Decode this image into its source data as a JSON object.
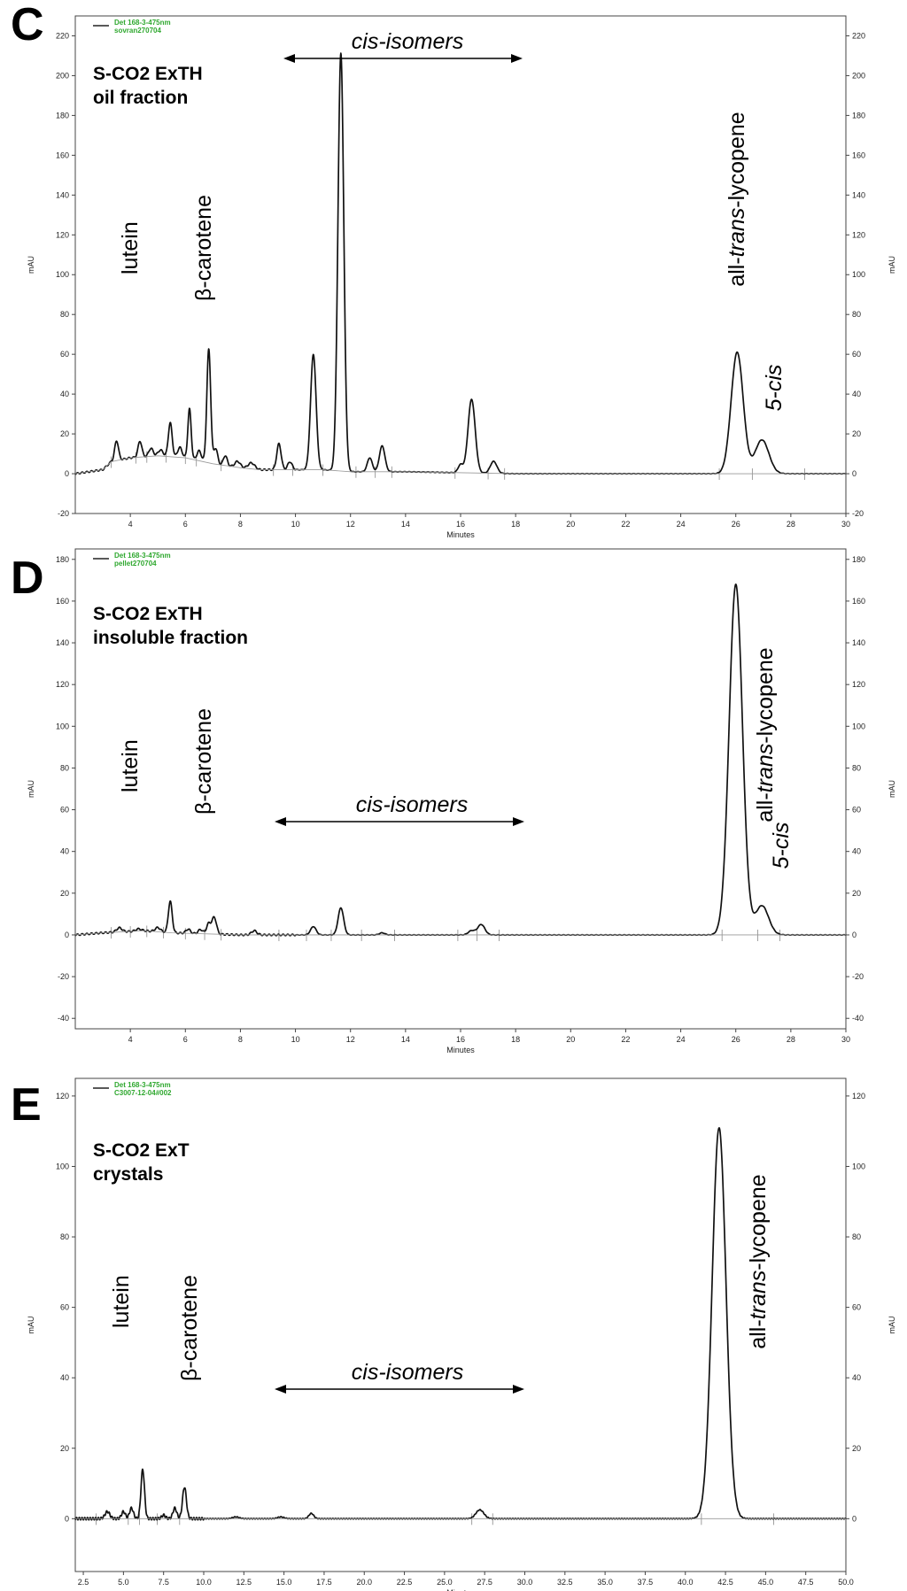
{
  "chart_data": [
    {
      "type": "line",
      "panel_letter": "C",
      "title": "S-CO2 ExTH",
      "subtitle": "oil fraction",
      "legend": [
        "Det 168-3-475nm",
        "sovran270704"
      ],
      "xlabel": "Minutes",
      "ylabel": "mAU",
      "xlim": [
        2,
        30
      ],
      "ylim": [
        -20,
        230
      ],
      "x_ticks": [
        "4",
        "6",
        "8",
        "10",
        "12",
        "14",
        "16",
        "18",
        "20",
        "22",
        "24",
        "26",
        "28",
        "30"
      ],
      "y_ticks": [
        "-20",
        "0",
        "20",
        "40",
        "60",
        "80",
        "100",
        "120",
        "140",
        "160",
        "180",
        "200",
        "220"
      ],
      "cis_range": [
        9.0,
        18.0
      ],
      "annotations": {
        "lutein": "lutein",
        "carotene": "β-carotene",
        "cis": "cis-isomers",
        "trans_prefix": "all-",
        "trans_italic": "trans",
        "trans_suffix": "-lycopene",
        "five_cis": "5-cis"
      },
      "series": [
        {
          "baseline": [
            [
              2.0,
              0
            ],
            [
              3.0,
              2
            ],
            [
              3.3,
              6
            ],
            [
              4.0,
              8
            ],
            [
              5.0,
              9
            ],
            [
              6.0,
              8
            ],
            [
              7.0,
              5
            ],
            [
              8.0,
              3
            ],
            [
              8.7,
              2
            ],
            [
              9.5,
              2
            ],
            [
              11.0,
              2
            ],
            [
              12.0,
              1
            ],
            [
              14.0,
              1
            ],
            [
              18.0,
              0
            ],
            [
              30.0,
              0
            ]
          ],
          "peaks": [
            {
              "x": 3.5,
              "height": 10,
              "sigma": 0.07
            },
            {
              "x": 4.35,
              "height": 8,
              "sigma": 0.07
            },
            {
              "x": 4.75,
              "height": 4,
              "sigma": 0.08
            },
            {
              "x": 5.1,
              "height": 3,
              "sigma": 0.09
            },
            {
              "x": 5.45,
              "height": 17,
              "sigma": 0.07
            },
            {
              "x": 5.8,
              "height": 5,
              "sigma": 0.08
            },
            {
              "x": 6.15,
              "height": 25,
              "sigma": 0.06
            },
            {
              "x": 6.5,
              "height": 5,
              "sigma": 0.08
            },
            {
              "x": 6.85,
              "height": 57,
              "sigma": 0.07
            },
            {
              "x": 7.1,
              "height": 8,
              "sigma": 0.07
            },
            {
              "x": 7.45,
              "height": 5,
              "sigma": 0.07
            },
            {
              "x": 7.9,
              "height": 3,
              "sigma": 0.1
            },
            {
              "x": 8.4,
              "height": 3,
              "sigma": 0.12
            },
            {
              "x": 9.4,
              "height": 13,
              "sigma": 0.08
            },
            {
              "x": 9.8,
              "height": 4,
              "sigma": 0.08
            },
            {
              "x": 10.65,
              "height": 58,
              "sigma": 0.1
            },
            {
              "x": 11.65,
              "height": 210,
              "sigma": 0.105
            },
            {
              "x": 12.7,
              "height": 7,
              "sigma": 0.09
            },
            {
              "x": 13.15,
              "height": 13,
              "sigma": 0.1
            },
            {
              "x": 16.0,
              "height": 4,
              "sigma": 0.09
            },
            {
              "x": 16.4,
              "height": 37,
              "sigma": 0.13
            },
            {
              "x": 17.2,
              "height": 6,
              "sigma": 0.12
            },
            {
              "x": 26.05,
              "height": 61,
              "sigma": 0.22
            },
            {
              "x": 26.95,
              "height": 17,
              "sigma": 0.25
            }
          ]
        }
      ],
      "markers": [
        3.3,
        4.2,
        4.6,
        5.3,
        6.0,
        6.4,
        7.3,
        9.2,
        9.9,
        11.0,
        12.2,
        12.9,
        13.5,
        15.8,
        17.0,
        17.6,
        25.4,
        26.6,
        28.5
      ]
    },
    {
      "type": "line",
      "panel_letter": "D",
      "title": "S-CO2 ExTH",
      "subtitle": "insoluble fraction",
      "legend": [
        "Det 168-3-475nm",
        "pellet270704"
      ],
      "xlabel": "Minutes",
      "ylabel": "mAU",
      "xlim": [
        2,
        30
      ],
      "ylim": [
        -45,
        185
      ],
      "x_ticks": [
        "4",
        "6",
        "8",
        "10",
        "12",
        "14",
        "16",
        "18",
        "20",
        "22",
        "24",
        "26",
        "28",
        "30"
      ],
      "y_ticks": [
        "-40",
        "-20",
        "0",
        "20",
        "40",
        "60",
        "80",
        "100",
        "120",
        "140",
        "160",
        "180"
      ],
      "cis_range": [
        8.6,
        18.4
      ],
      "annotations": {
        "lutein": "lutein",
        "carotene": "β-carotene",
        "cis": "cis-isomers",
        "trans_prefix": "all-",
        "trans_italic": "trans",
        "trans_suffix": "-lycopene",
        "five_cis": "5-cis"
      },
      "series": [
        {
          "baseline": [
            [
              2.0,
              0
            ],
            [
              3.0,
              1
            ],
            [
              4.5,
              2
            ],
            [
              5.5,
              1
            ],
            [
              8.0,
              0
            ],
            [
              30.0,
              0
            ]
          ],
          "peaks": [
            {
              "x": 3.6,
              "height": 2,
              "sigma": 0.1
            },
            {
              "x": 4.3,
              "height": 1,
              "sigma": 0.1
            },
            {
              "x": 5.0,
              "height": 2,
              "sigma": 0.1
            },
            {
              "x": 5.45,
              "height": 15,
              "sigma": 0.07
            },
            {
              "x": 6.1,
              "height": 2,
              "sigma": 0.08
            },
            {
              "x": 6.55,
              "height": 2,
              "sigma": 0.08
            },
            {
              "x": 6.85,
              "height": 5,
              "sigma": 0.08
            },
            {
              "x": 7.05,
              "height": 8,
              "sigma": 0.08
            },
            {
              "x": 8.5,
              "height": 2,
              "sigma": 0.1
            },
            {
              "x": 10.65,
              "height": 4,
              "sigma": 0.1
            },
            {
              "x": 11.65,
              "height": 13,
              "sigma": 0.1
            },
            {
              "x": 13.15,
              "height": 1,
              "sigma": 0.1
            },
            {
              "x": 16.4,
              "height": 2,
              "sigma": 0.12
            },
            {
              "x": 16.75,
              "height": 5,
              "sigma": 0.13
            },
            {
              "x": 26.0,
              "height": 168,
              "sigma": 0.24
            },
            {
              "x": 26.95,
              "height": 14,
              "sigma": 0.24
            }
          ]
        }
      ],
      "markers": [
        3.3,
        4.0,
        4.6,
        5.2,
        6.0,
        6.7,
        7.3,
        9.4,
        10.4,
        11.3,
        12.4,
        13.6,
        15.9,
        16.6,
        17.4,
        25.5,
        26.8,
        27.6
      ]
    },
    {
      "type": "line",
      "panel_letter": "E",
      "title": "S-CO2 ExT",
      "subtitle": "crystals",
      "legend": [
        "Det 168-3-475nm",
        "C3007-12-04#002"
      ],
      "xlabel": "Minutes",
      "ylabel": "mAU",
      "xlim": [
        2,
        50
      ],
      "ylim": [
        -15,
        125
      ],
      "x_ticks": [
        "2.5",
        "5.0",
        "7.5",
        "10.0",
        "12.5",
        "15.0",
        "17.5",
        "20.0",
        "22.5",
        "25.0",
        "27.5",
        "30.0",
        "32.5",
        "35.0",
        "37.5",
        "40.0",
        "42.5",
        "45.0",
        "47.5",
        "50.0"
      ],
      "y_ticks": [
        "0",
        "20",
        "40",
        "60",
        "80",
        "100",
        "120"
      ],
      "cis_range": [
        14.0,
        30.0
      ],
      "annotations": {
        "lutein": "lutein",
        "carotene": "β-carotene",
        "cis": "cis-isomers",
        "trans_prefix": "all-",
        "trans_italic": "trans",
        "trans_suffix": "-lycopene"
      },
      "series": [
        {
          "baseline": [
            [
              2.0,
              0
            ],
            [
              50.0,
              0
            ]
          ],
          "peaks": [
            {
              "x": 4.0,
              "height": 2,
              "sigma": 0.15
            },
            {
              "x": 5.0,
              "height": 2,
              "sigma": 0.12
            },
            {
              "x": 5.5,
              "height": 3,
              "sigma": 0.12
            },
            {
              "x": 6.2,
              "height": 14,
              "sigma": 0.11
            },
            {
              "x": 7.5,
              "height": 1,
              "sigma": 0.12
            },
            {
              "x": 8.2,
              "height": 3,
              "sigma": 0.12
            },
            {
              "x": 8.8,
              "height": 9,
              "sigma": 0.12
            },
            {
              "x": 12.0,
              "height": 0.5,
              "sigma": 0.2
            },
            {
              "x": 14.8,
              "height": 0.5,
              "sigma": 0.2
            },
            {
              "x": 16.7,
              "height": 1.5,
              "sigma": 0.15
            },
            {
              "x": 27.2,
              "height": 2.5,
              "sigma": 0.25
            },
            {
              "x": 42.1,
              "height": 111,
              "sigma": 0.43
            }
          ]
        }
      ],
      "markers": [
        3.3,
        5.3,
        6.0,
        7.1,
        8.5,
        26.7,
        28.0,
        41.0,
        45.5
      ]
    }
  ]
}
